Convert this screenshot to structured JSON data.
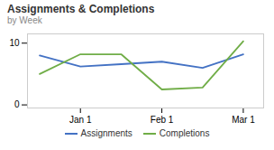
{
  "chart_data": {
    "type": "line",
    "title": "Assignments & Completions",
    "subtitle": "by Week",
    "x": [
      0,
      1,
      2,
      3,
      4,
      5
    ],
    "series": [
      {
        "name": "Assignments",
        "color": "#4472C4",
        "values": [
          8.0,
          6.2,
          6.6,
          7.0,
          6.0,
          8.2
        ]
      },
      {
        "name": "Completions",
        "color": "#70AD47",
        "values": [
          5.0,
          8.2,
          8.2,
          2.5,
          2.8,
          10.3
        ]
      }
    ],
    "xlim": [
      -0.3,
      5.5
    ],
    "xticks": [
      {
        "value": 1,
        "label": "Jan 1"
      },
      {
        "value": 3,
        "label": "Feb 1"
      },
      {
        "value": 5,
        "label": "Mar 1"
      }
    ],
    "ylim": [
      -0.5,
      11.5
    ],
    "yticks": [
      0,
      10
    ],
    "grid": false,
    "legend": "bottom"
  }
}
